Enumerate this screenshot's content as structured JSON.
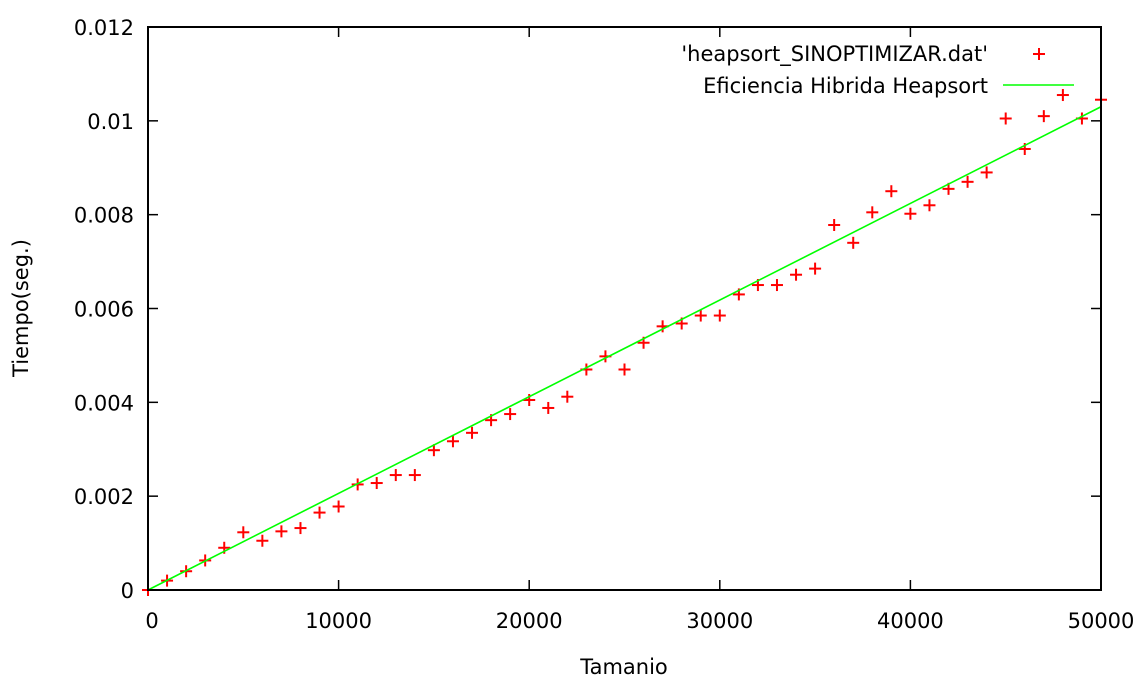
{
  "chart_data": {
    "type": "scatter",
    "xlabel": "Tamanio",
    "ylabel": "Tiempo(seg.)",
    "xlim": [
      0,
      50000
    ],
    "ylim": [
      0,
      0.012
    ],
    "x_ticks": [
      0,
      10000,
      20000,
      30000,
      40000,
      50000
    ],
    "y_ticks": [
      0,
      0.002,
      0.004,
      0.006,
      0.008,
      0.01,
      0.012
    ],
    "x_tick_labels": [
      "0",
      "10000",
      "20000",
      "30000",
      "40000",
      "50000"
    ],
    "y_tick_labels": [
      "0",
      "0.002",
      "0.004",
      "0.006",
      "0.008",
      "0.01",
      "0.012"
    ],
    "grid": false,
    "legend_position": "top-right",
    "series": [
      {
        "name": "'heapsort_SINOPTIMIZAR.dat'",
        "kind": "points",
        "marker": "plus",
        "color": "#ff0000",
        "x": [
          0,
          1000,
          2000,
          3000,
          4000,
          5000,
          6000,
          7000,
          8000,
          9000,
          10000,
          11000,
          12000,
          13000,
          14000,
          15000,
          16000,
          17000,
          18000,
          19000,
          20000,
          21000,
          22000,
          23000,
          24000,
          25000,
          26000,
          27000,
          28000,
          29000,
          30000,
          31000,
          32000,
          33000,
          34000,
          35000,
          36000,
          37000,
          38000,
          39000,
          40000,
          41000,
          42000,
          43000,
          44000,
          45000,
          46000,
          47000,
          48000,
          49000,
          50000
        ],
        "y": [
          0.0,
          0.0002,
          0.0004,
          0.00063,
          0.0009,
          0.00123,
          0.00105,
          0.00125,
          0.00132,
          0.00165,
          0.00178,
          0.00225,
          0.00228,
          0.00245,
          0.00245,
          0.00298,
          0.00317,
          0.00335,
          0.00362,
          0.00375,
          0.00405,
          0.00388,
          0.00412,
          0.0047,
          0.00498,
          0.0047,
          0.00527,
          0.00562,
          0.00568,
          0.00585,
          0.00585,
          0.0063,
          0.0065,
          0.0065,
          0.00672,
          0.00685,
          0.00778,
          0.0074,
          0.00805,
          0.0085,
          0.00802,
          0.0082,
          0.00855,
          0.0087,
          0.0089,
          0.01005,
          0.0094,
          0.0101,
          0.01055,
          0.01005,
          0.01045
        ]
      },
      {
        "name": "Eficiencia Hibrida Heapsort",
        "kind": "line",
        "color": "#00ff00",
        "x": [
          0,
          50000
        ],
        "y": [
          0.0,
          0.0103
        ]
      }
    ]
  }
}
